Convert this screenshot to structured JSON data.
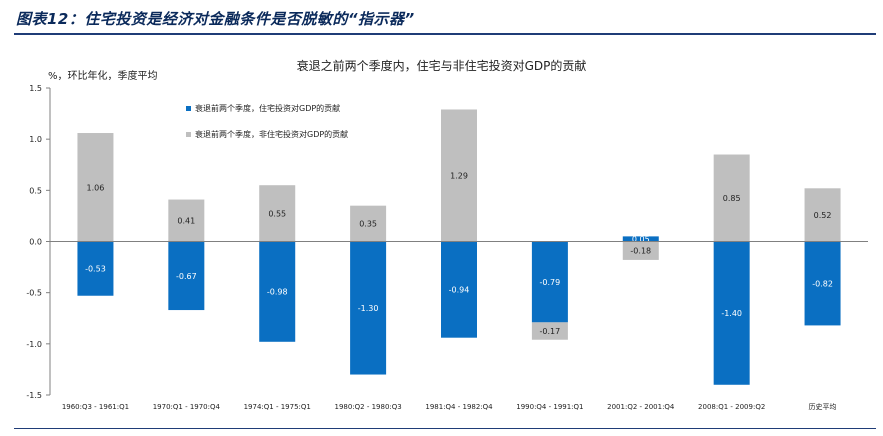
{
  "figure": {
    "title": "图表12：住宅投资是经济对金融条件是否脱敏的“指示器”"
  },
  "colors": {
    "series_residential": "#0a6fc2",
    "series_nonresidential": "#bfbfbf",
    "rule": "#1f3c77",
    "title": "#0b2a5b"
  },
  "chart_data": {
    "type": "bar",
    "stacked": true,
    "title": "衰退之前两个季度内，住宅与非住宅投资对GDP的贡献",
    "ylabel": "%，环比年化，季度平均",
    "ylim": [
      -1.5,
      1.5
    ],
    "yticks": [
      "1.5",
      "1.0",
      "0.5",
      "0.0",
      "-0.5",
      "-1.0",
      "-1.5"
    ],
    "categories": [
      "1960:Q3 - 1961:Q1",
      "1970:Q1 - 1970:Q4",
      "1974:Q1 - 1975:Q1",
      "1980:Q2 - 1980:Q3",
      "1981:Q4 - 1982:Q4",
      "1990:Q4 - 1991:Q1",
      "2001:Q2 - 2001:Q4",
      "2008:Q1 - 2009:Q2",
      "历史平均"
    ],
    "series": [
      {
        "name": "衰退前两个季度，住宅投资对GDP的贡献",
        "values": [
          -0.53,
          -0.67,
          -0.98,
          -1.3,
          -0.94,
          -0.79,
          0.05,
          -1.4,
          -0.82
        ],
        "labels": [
          "-0.53",
          "-0.67",
          "-0.98",
          "-1.30",
          "-0.94",
          "-0.79",
          "0.05",
          "-1.40",
          "-0.82"
        ]
      },
      {
        "name": "衰退前两个季度，非住宅投资对GDP的贡献",
        "values": [
          1.06,
          0.41,
          0.55,
          0.35,
          1.29,
          -0.17,
          -0.18,
          0.85,
          0.52
        ],
        "labels": [
          "1.06",
          "0.41",
          "0.55",
          "0.35",
          "1.29",
          "-0.17",
          "-0.18",
          "0.85",
          "0.52"
        ]
      }
    ],
    "legend": "top-left"
  }
}
